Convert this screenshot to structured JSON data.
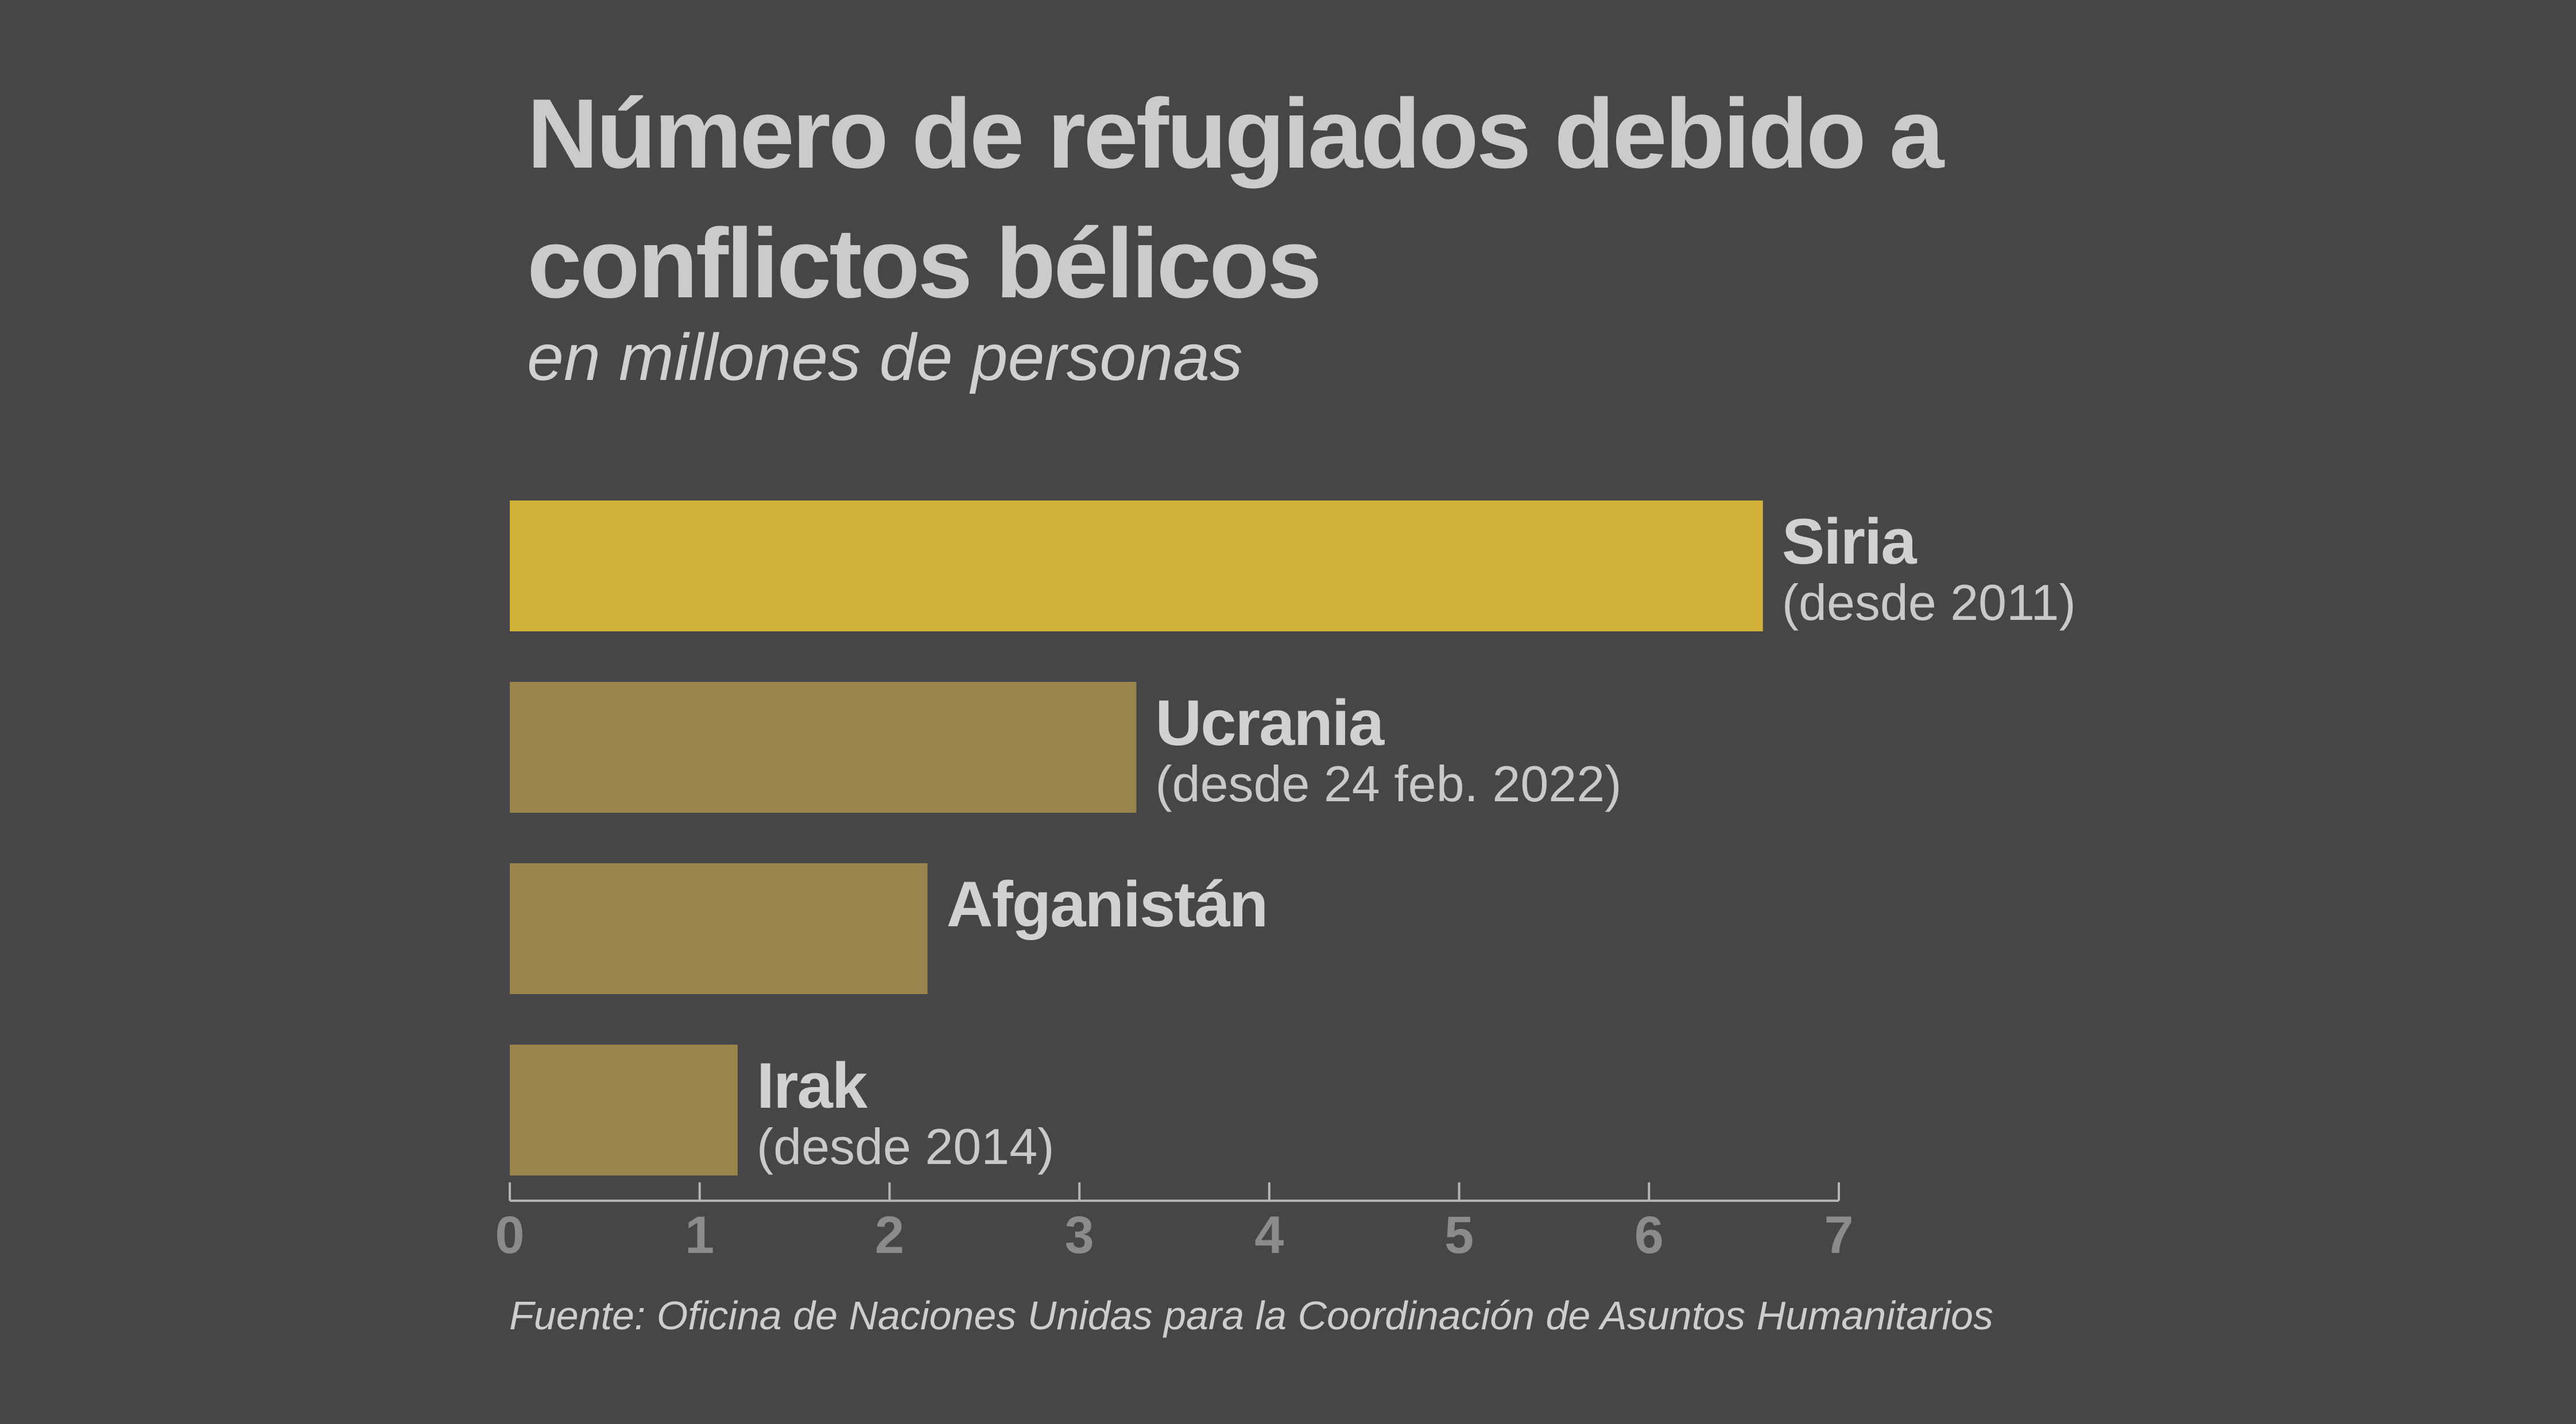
{
  "title_lines": [
    "Número de refugiados debido a",
    "conflictos bélicos"
  ],
  "subtitle": "en millones de personas",
  "source": "Fuente: Oficina de Naciones Unidas para la Coordinación de Asuntos Humanitarios",
  "colors": {
    "background": "#464648",
    "highlight_bar": "#d2b238",
    "bar": "#99844c",
    "axis": "#b5b3b3",
    "tick_label": "#8c8b8c"
  },
  "chart_data": {
    "type": "bar",
    "orientation": "horizontal",
    "categories": [
      "Siria",
      "Ucrania",
      "Afganistán",
      "Irak"
    ],
    "notes": [
      "(desde 2011)",
      "(desde 24 feb. 2022)",
      "",
      "(desde 2014)"
    ],
    "values": [
      6.6,
      3.3,
      2.2,
      1.2
    ],
    "highlight": "Siria",
    "xlim": [
      0,
      7
    ],
    "xticks": [
      "0",
      "1",
      "2",
      "3",
      "4",
      "5",
      "6",
      "7"
    ],
    "grid": false,
    "legend": "none"
  }
}
